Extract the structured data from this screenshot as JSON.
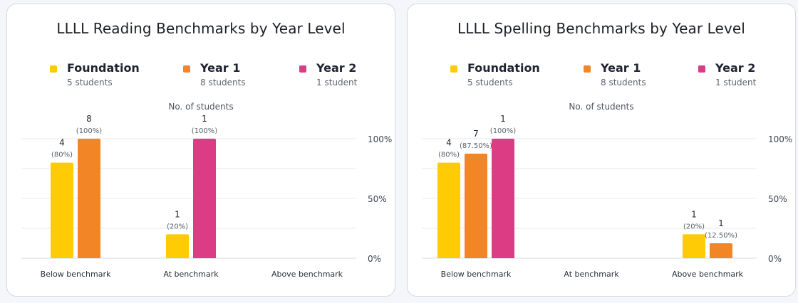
{
  "chart_data": [
    {
      "type": "bar",
      "title": "LLLL Reading Benchmarks by Year Level",
      "ylabel": "No. of students",
      "categories": [
        "Below benchmark",
        "At benchmark",
        "Above benchmark"
      ],
      "yticks": [
        "0%",
        "50%",
        "100%"
      ],
      "ylim": [
        0,
        100
      ],
      "grid": true,
      "legend_position": "top",
      "series": [
        {
          "name": "Foundation",
          "subtitle": "5 students",
          "color": "#FFCB05",
          "values": [
            80,
            20,
            null
          ],
          "counts": [
            "4",
            "1",
            ""
          ],
          "labels": [
            "(80%)",
            "(20%)",
            ""
          ]
        },
        {
          "name": "Year 1",
          "subtitle": "8 students",
          "color": "#F28526",
          "values": [
            100,
            null,
            null
          ],
          "counts": [
            "8",
            "",
            ""
          ],
          "labels": [
            "(100%)",
            "",
            ""
          ]
        },
        {
          "name": "Year 2",
          "subtitle": "1 student",
          "color": "#DB3C83",
          "values": [
            null,
            100,
            null
          ],
          "counts": [
            "",
            "1",
            ""
          ],
          "labels": [
            "",
            "(100%)",
            ""
          ]
        }
      ]
    },
    {
      "type": "bar",
      "title": "LLLL Spelling Benchmarks by Year Level",
      "ylabel": "No. of students",
      "categories": [
        "Below benchmark",
        "At benchmark",
        "Above benchmark"
      ],
      "yticks": [
        "0%",
        "50%",
        "100%"
      ],
      "ylim": [
        0,
        100
      ],
      "grid": true,
      "legend_position": "top",
      "series": [
        {
          "name": "Foundation",
          "subtitle": "5 students",
          "color": "#FFCB05",
          "values": [
            80,
            null,
            20
          ],
          "counts": [
            "4",
            "",
            "1"
          ],
          "labels": [
            "(80%)",
            "",
            "(20%)"
          ]
        },
        {
          "name": "Year 1",
          "subtitle": "8 students",
          "color": "#F28526",
          "values": [
            87.5,
            null,
            12.5
          ],
          "counts": [
            "7",
            "",
            "1"
          ],
          "labels": [
            "(87.50%)",
            "",
            "(12.50%)"
          ]
        },
        {
          "name": "Year 2",
          "subtitle": "1 student",
          "color": "#DB3C83",
          "values": [
            100,
            null,
            null
          ],
          "counts": [
            "1",
            "",
            ""
          ],
          "labels": [
            "(100%)",
            "",
            ""
          ]
        }
      ]
    }
  ]
}
